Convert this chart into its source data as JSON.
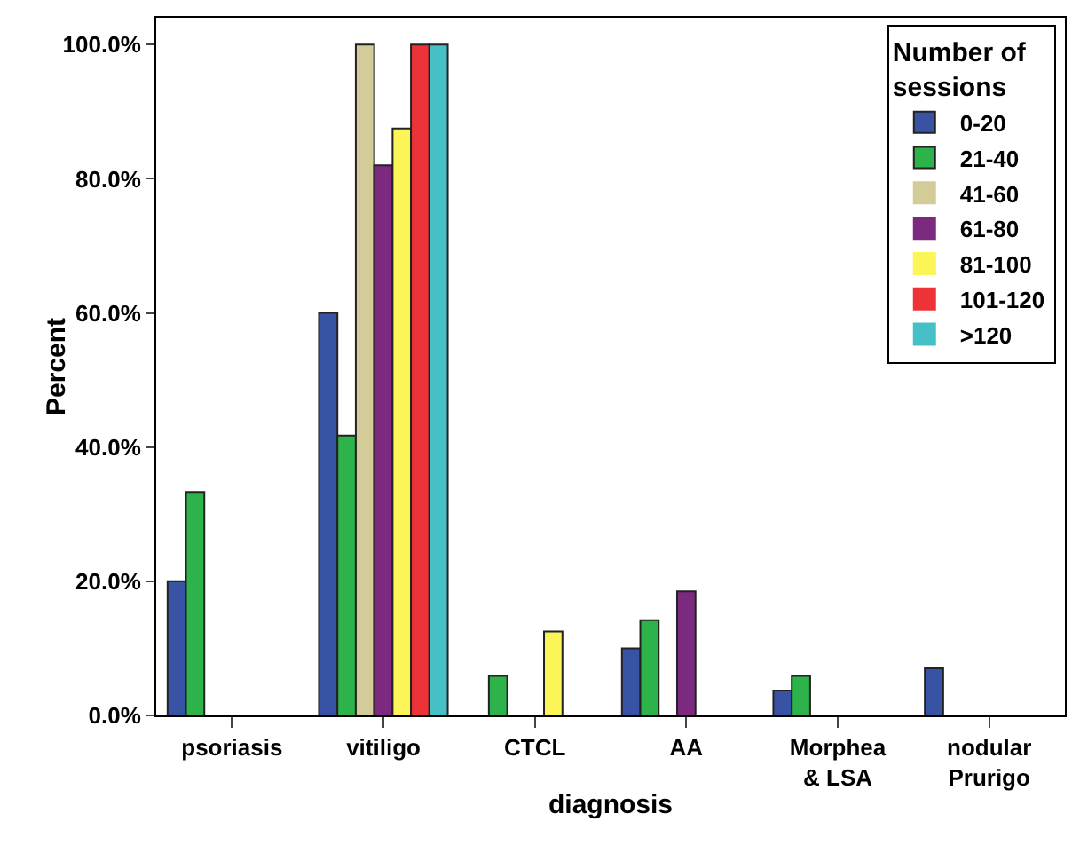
{
  "chart_data": {
    "type": "bar",
    "xlabel": "diagnosis",
    "ylabel": "Percent",
    "legend_title": "Number of sessions",
    "legend": "top right",
    "grid": false,
    "categories": [
      "psoriasis",
      "vitiligo",
      "CTCL",
      "AA",
      "Morphea\n& LSA",
      "nodular\nPrurigo"
    ],
    "ylim": [
      0,
      104
    ],
    "yticks": [
      {
        "value": 0,
        "label": "0.0%"
      },
      {
        "value": 20,
        "label": "20.0%"
      },
      {
        "value": 40,
        "label": "40.0%"
      },
      {
        "value": 60,
        "label": "60.0%"
      },
      {
        "value": 80,
        "label": "80.0%"
      },
      {
        "value": 100,
        "label": "100.0%"
      }
    ],
    "series": [
      {
        "name": "0-20",
        "color": "#3953a4",
        "values": [
          20,
          60,
          0,
          10,
          3.7,
          7
        ]
      },
      {
        "name": "21-40",
        "color": "#2db34a",
        "values": [
          33.3,
          41.7,
          5.9,
          14.2,
          5.9,
          0
        ]
      },
      {
        "name": "41-60",
        "color": "#d3cc98",
        "values": [
          0,
          100,
          0,
          0,
          0,
          0
        ]
      },
      {
        "name": "61-80",
        "color": "#7b2a80",
        "values": [
          0,
          82,
          0,
          18.5,
          0,
          0
        ]
      },
      {
        "name": "81-100",
        "color": "#fbf558",
        "values": [
          0,
          87.5,
          12.5,
          0,
          0,
          0
        ]
      },
      {
        "name": "101-120",
        "color": "#ee3338",
        "values": [
          0,
          100,
          0,
          0,
          0,
          0
        ]
      },
      {
        "name": ">120",
        "color": "#45c0c6",
        "values": [
          0,
          100,
          0,
          0,
          0,
          0
        ]
      }
    ]
  }
}
